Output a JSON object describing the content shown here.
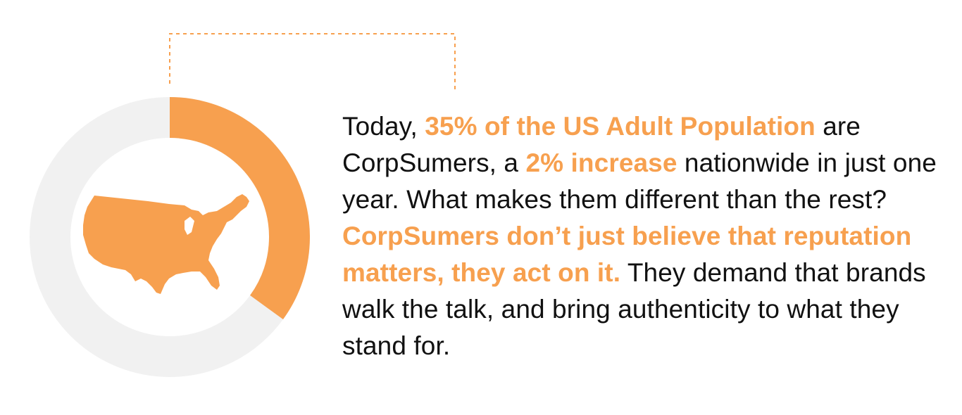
{
  "colors": {
    "accent": "#f7a04f",
    "ring_track": "#f1f1f1",
    "text": "#111111"
  },
  "donut": {
    "percent": 35,
    "icon": "us-map-icon"
  },
  "paragraph": {
    "t1": "Today, ",
    "h1": "35% of the US Adult Population",
    "t2": " are CorpSumers, a ",
    "h2": "2% increase",
    "t3": " nationwide in just one year. What makes them different than the rest? ",
    "h3": "CorpSumers don’t just believe that reputation matters, they act on it.",
    "t4": " They demand that brands walk the talk, and bring authenticity to what they stand for."
  }
}
